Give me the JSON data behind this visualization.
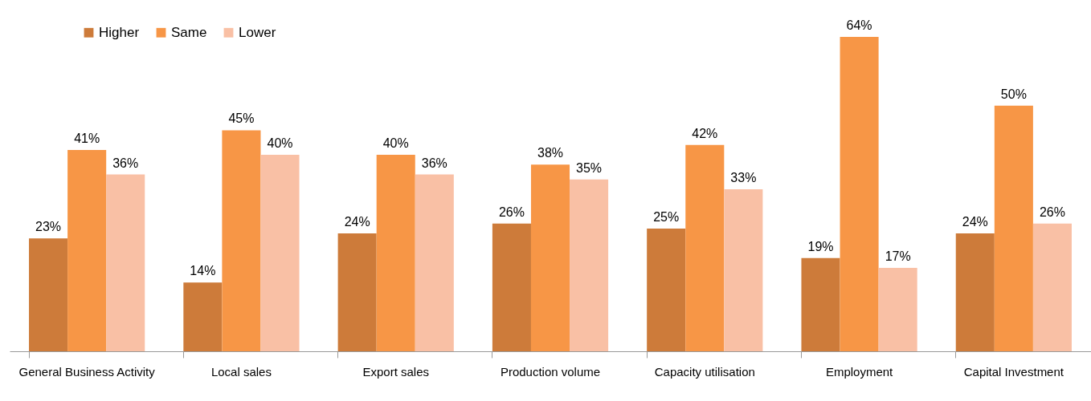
{
  "chart_data": {
    "type": "bar",
    "categories": [
      "General Business Activity",
      "Local sales",
      "Export sales",
      "Production volume",
      "Capacity utilisation",
      "Employment",
      "Capital Investment"
    ],
    "series": [
      {
        "name": "Higher",
        "color": "#cd7b3a",
        "values": [
          23,
          14,
          24,
          26,
          25,
          19,
          24
        ],
        "value_labels": [
          "23%",
          "14%",
          "24%",
          "26%",
          "25%",
          "19%",
          "24%"
        ]
      },
      {
        "name": "Same",
        "color": "#f79646",
        "values": [
          41,
          45,
          40,
          38,
          42,
          64,
          50
        ],
        "value_labels": [
          "41%",
          "45%",
          "40%",
          "38%",
          "42%",
          "64%",
          "50%"
        ]
      },
      {
        "name": "Lower",
        "color": "#f9c0a5",
        "values": [
          36,
          40,
          36,
          35,
          33,
          17,
          26
        ],
        "value_labels": [
          "36%",
          "40%",
          "36%",
          "35%",
          "33%",
          "17%",
          "26%"
        ]
      }
    ],
    "legend": "top left",
    "grid": false
  }
}
